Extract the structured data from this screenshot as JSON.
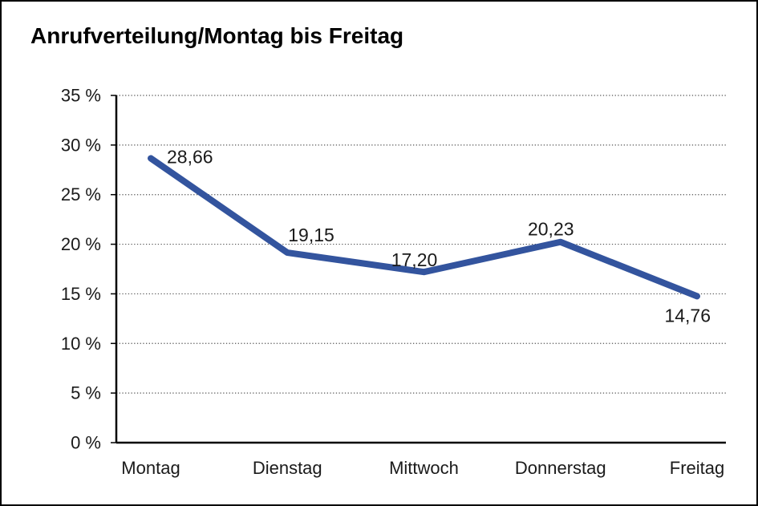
{
  "frame": {
    "background": "#ffffff",
    "border_color": "#000000"
  },
  "chart_data": {
    "type": "line",
    "title": "Anrufverteilung/Montag bis Freitag",
    "categories": [
      "Montag",
      "Dienstag",
      "Mittwoch",
      "Donnerstag",
      "Freitag"
    ],
    "values": [
      28.66,
      19.15,
      17.2,
      20.23,
      14.76
    ],
    "point_labels": [
      "28,66",
      "19,15",
      "17,20",
      "20,23",
      "14,76"
    ],
    "xlabel": "",
    "ylabel": "",
    "ylim": [
      0,
      35
    ],
    "y_ticks": [
      0,
      5,
      10,
      15,
      20,
      25,
      30,
      35
    ],
    "y_tick_labels": [
      "0 %",
      "5 %",
      "10 %",
      "15 %",
      "20 %",
      "25 %",
      "30 %",
      "35 %"
    ],
    "grid": "horizontal-dotted",
    "legend": "none",
    "line_color": "#33549E",
    "axis_color": "#000000",
    "grid_color": "#555555",
    "text_color": "#1a1a1a"
  }
}
